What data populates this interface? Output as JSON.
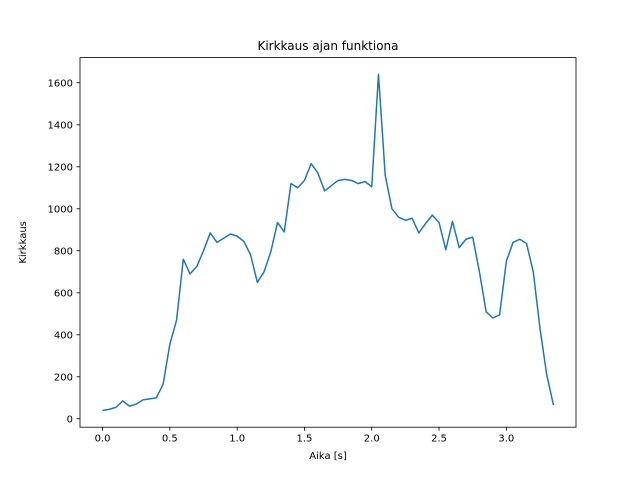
{
  "chart_data": {
    "type": "line",
    "title": "Kirkkaus ajan funktiona",
    "xlabel": "Aika [s]",
    "ylabel": "Kirkkaus",
    "line_color": "#1f77b4",
    "background_color": "#ffffff",
    "grid": false,
    "legend": "none",
    "x_ticks": [
      0.0,
      0.5,
      1.0,
      1.5,
      2.0,
      2.5,
      3.0
    ],
    "x_tick_labels": [
      "0.0",
      "0.5",
      "1.0",
      "1.5",
      "2.0",
      "2.5",
      "3.0"
    ],
    "y_ticks": [
      0,
      200,
      400,
      600,
      800,
      1000,
      1200,
      1400,
      1600
    ],
    "y_tick_labels": [
      "0",
      "200",
      "400",
      "600",
      "800",
      "1000",
      "1200",
      "1400",
      "1600"
    ],
    "xlim": [
      -0.1675,
      3.5175
    ],
    "ylim": [
      -40,
      1720
    ],
    "x": [
      0.0,
      0.05,
      0.1,
      0.15,
      0.2,
      0.25,
      0.3,
      0.35,
      0.4,
      0.45,
      0.5,
      0.55,
      0.6,
      0.65,
      0.7,
      0.75,
      0.8,
      0.85,
      0.9,
      0.95,
      1.0,
      1.05,
      1.1,
      1.15,
      1.2,
      1.25,
      1.3,
      1.35,
      1.4,
      1.45,
      1.5,
      1.55,
      1.6,
      1.65,
      1.7,
      1.75,
      1.8,
      1.85,
      1.9,
      1.95,
      2.0,
      2.05,
      2.1,
      2.15,
      2.2,
      2.25,
      2.3,
      2.35,
      2.4,
      2.45,
      2.5,
      2.55,
      2.6,
      2.65,
      2.7,
      2.75,
      2.8,
      2.85,
      2.9,
      2.95,
      3.0,
      3.05,
      3.1,
      3.15,
      3.2,
      3.25,
      3.3,
      3.35
    ],
    "y": [
      40,
      45,
      55,
      85,
      60,
      70,
      90,
      95,
      100,
      165,
      355,
      470,
      760,
      690,
      725,
      800,
      885,
      840,
      860,
      880,
      870,
      845,
      780,
      650,
      700,
      795,
      935,
      890,
      1120,
      1100,
      1135,
      1215,
      1170,
      1085,
      1110,
      1135,
      1140,
      1135,
      1120,
      1130,
      1105,
      1640,
      1160,
      1000,
      960,
      945,
      955,
      885,
      930,
      970,
      935,
      805,
      940,
      815,
      855,
      865,
      700,
      510,
      480,
      495,
      750,
      840,
      855,
      835,
      700,
      430,
      210,
      65
    ]
  }
}
